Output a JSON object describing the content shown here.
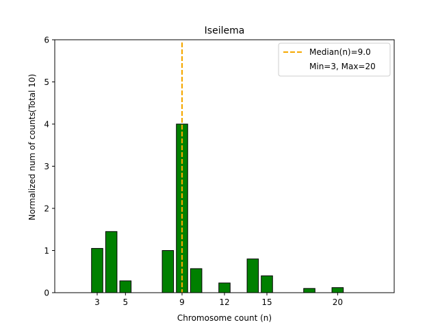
{
  "chart_data": {
    "type": "bar",
    "title": "Iseilema",
    "xlabel": "Chromosome count (n)",
    "ylabel_line1": "Normalized num of counts",
    "ylabel_line2": "(Total 10)",
    "xlim": [
      0,
      24
    ],
    "ylim": [
      0,
      6
    ],
    "bar_width": 0.8,
    "bar_color": "#008000",
    "bar_edge_color": "#000000",
    "bars": [
      {
        "x": 3,
        "value": 1.05
      },
      {
        "x": 4,
        "value": 1.45
      },
      {
        "x": 5,
        "value": 0.28
      },
      {
        "x": 8,
        "value": 1.0
      },
      {
        "x": 9,
        "value": 4.0
      },
      {
        "x": 10,
        "value": 0.57
      },
      {
        "x": 12,
        "value": 0.23
      },
      {
        "x": 14,
        "value": 0.8
      },
      {
        "x": 15,
        "value": 0.4
      },
      {
        "x": 18,
        "value": 0.1
      },
      {
        "x": 20,
        "value": 0.12
      }
    ],
    "xticks": [
      3,
      5,
      9,
      12,
      15,
      20
    ],
    "xtick_labels": [
      "3",
      "5",
      "9",
      "12",
      "15",
      "20"
    ],
    "yticks": [
      0,
      1,
      2,
      3,
      4,
      5,
      6
    ],
    "ytick_labels": [
      "0",
      "1",
      "2",
      "3",
      "4",
      "5",
      "6"
    ],
    "median_line": {
      "x": 9.0,
      "color": "#f5a800",
      "style": "dashed"
    },
    "legend": {
      "position": "top-right",
      "entries": [
        "Median(n)=9.0",
        "Min=3, Max=20"
      ]
    }
  }
}
